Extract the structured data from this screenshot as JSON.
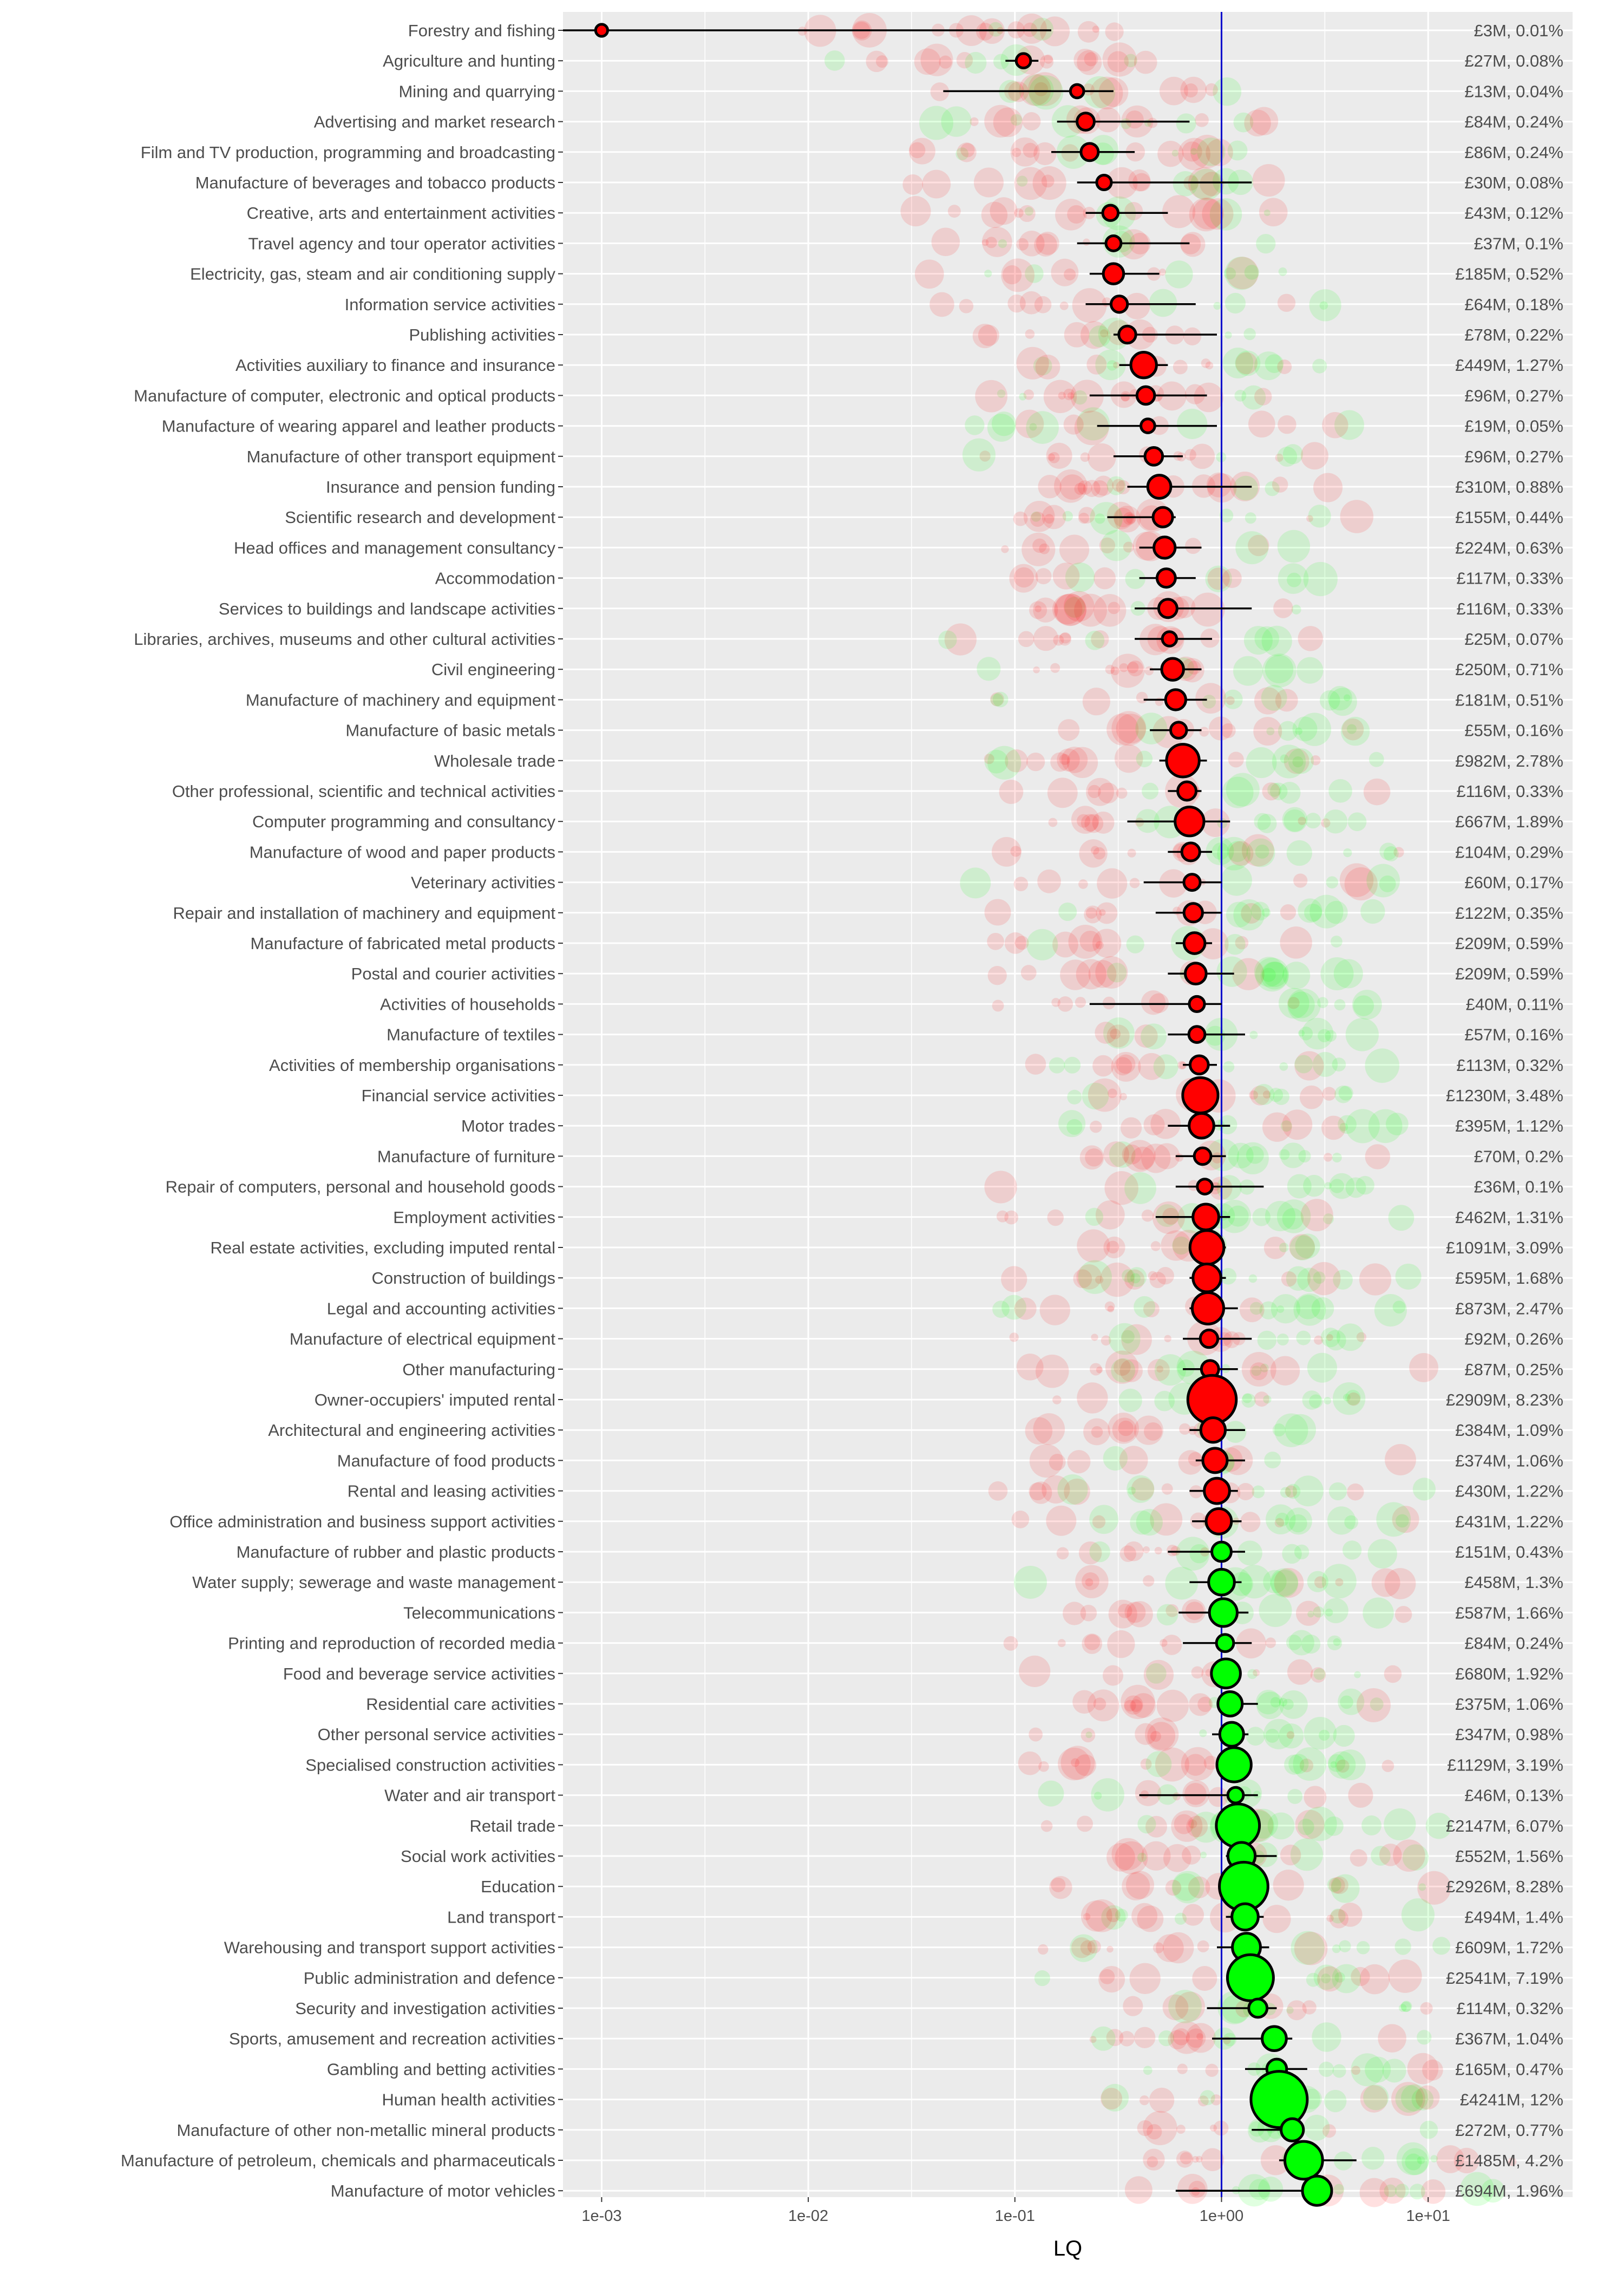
{
  "chart_data": {
    "type": "scatter",
    "xlabel": "LQ",
    "x_scale": "log",
    "xlim": [
      0.00065,
      50
    ],
    "x_ticks": [
      "1e-03",
      "1e-02",
      "1e-01",
      "1e+00",
      "1e+01"
    ],
    "x_tick_values": [
      0.001,
      0.01,
      0.1,
      1,
      10
    ],
    "reference_line": {
      "x": 1,
      "color": "#0000cc"
    },
    "grid": true,
    "panel_background": "#ebebeb",
    "colors": {
      "below_one": "#ff0000",
      "above_one": "#00ff00",
      "error_bar": "#000000"
    },
    "series": [
      {
        "category": "Forestry and fishing",
        "lq": 0.001,
        "low": 0.00065,
        "high": 0.15,
        "size": 3,
        "label": "£3M, 0.01%"
      },
      {
        "category": "Agriculture and hunting",
        "lq": 0.11,
        "low": 0.09,
        "high": 0.13,
        "size": 27,
        "label": "£27M, 0.08%"
      },
      {
        "category": "Mining and quarrying",
        "lq": 0.2,
        "low": 0.045,
        "high": 0.3,
        "size": 13,
        "label": "£13M, 0.04%"
      },
      {
        "category": "Advertising and market research",
        "lq": 0.22,
        "low": 0.16,
        "high": 0.7,
        "size": 84,
        "label": "£84M, 0.24%"
      },
      {
        "category": "Film and TV production, programming and broadcasting",
        "lq": 0.23,
        "low": 0.15,
        "high": 0.38,
        "size": 86,
        "label": "£86M, 0.24%"
      },
      {
        "category": "Manufacture of beverages and tobacco products",
        "lq": 0.27,
        "low": 0.2,
        "high": 1.4,
        "size": 30,
        "label": "£30M, 0.08%"
      },
      {
        "category": "Creative, arts and entertainment activities",
        "lq": 0.29,
        "low": 0.22,
        "high": 0.55,
        "size": 43,
        "label": "£43M, 0.12%"
      },
      {
        "category": "Travel agency and tour operator activities",
        "lq": 0.3,
        "low": 0.2,
        "high": 0.7,
        "size": 37,
        "label": "£37M, 0.1%"
      },
      {
        "category": "Electricity, gas, steam and air conditioning supply",
        "lq": 0.3,
        "low": 0.23,
        "high": 0.5,
        "size": 185,
        "label": "£185M, 0.52%"
      },
      {
        "category": "Information service activities",
        "lq": 0.32,
        "low": 0.22,
        "high": 0.75,
        "size": 64,
        "label": "£64M, 0.18%"
      },
      {
        "category": "Publishing activities",
        "lq": 0.35,
        "low": 0.3,
        "high": 0.95,
        "size": 78,
        "label": "£78M, 0.22%"
      },
      {
        "category": "Activities auxiliary to finance and insurance",
        "lq": 0.42,
        "low": 0.32,
        "high": 0.55,
        "size": 449,
        "label": "£449M, 1.27%"
      },
      {
        "category": "Manufacture of computer, electronic and optical products",
        "lq": 0.43,
        "low": 0.23,
        "high": 0.85,
        "size": 96,
        "label": "£96M, 0.27%"
      },
      {
        "category": "Manufacture of wearing apparel and leather products",
        "lq": 0.44,
        "low": 0.25,
        "high": 0.95,
        "size": 19,
        "label": "£19M, 0.05%"
      },
      {
        "category": "Manufacture of other transport equipment",
        "lq": 0.47,
        "low": 0.3,
        "high": 0.65,
        "size": 96,
        "label": "£96M, 0.27%"
      },
      {
        "category": "Insurance and pension funding",
        "lq": 0.5,
        "low": 0.35,
        "high": 1.4,
        "size": 310,
        "label": "£310M, 0.88%"
      },
      {
        "category": "Scientific research and development",
        "lq": 0.52,
        "low": 0.28,
        "high": 0.6,
        "size": 155,
        "label": "£155M, 0.44%"
      },
      {
        "category": "Head offices and management consultancy",
        "lq": 0.53,
        "low": 0.4,
        "high": 0.8,
        "size": 224,
        "label": "£224M, 0.63%"
      },
      {
        "category": "Accommodation",
        "lq": 0.54,
        "low": 0.4,
        "high": 0.75,
        "size": 117,
        "label": "£117M, 0.33%"
      },
      {
        "category": "Services to buildings and landscape activities",
        "lq": 0.55,
        "low": 0.38,
        "high": 1.4,
        "size": 116,
        "label": "£116M, 0.33%"
      },
      {
        "category": "Libraries, archives, museums and other cultural activities",
        "lq": 0.56,
        "low": 0.38,
        "high": 0.9,
        "size": 25,
        "label": "£25M, 0.07%"
      },
      {
        "category": "Civil engineering",
        "lq": 0.58,
        "low": 0.45,
        "high": 0.8,
        "size": 250,
        "label": "£250M, 0.71%"
      },
      {
        "category": "Manufacture of machinery and equipment",
        "lq": 0.6,
        "low": 0.42,
        "high": 0.85,
        "size": 181,
        "label": "£181M, 0.51%"
      },
      {
        "category": "Manufacture of basic metals",
        "lq": 0.62,
        "low": 0.45,
        "high": 0.8,
        "size": 55,
        "label": "£55M, 0.16%"
      },
      {
        "category": "Wholesale trade",
        "lq": 0.65,
        "low": 0.5,
        "high": 0.85,
        "size": 982,
        "label": "£982M, 2.78%"
      },
      {
        "category": "Other professional, scientific and technical activities",
        "lq": 0.68,
        "low": 0.55,
        "high": 0.8,
        "size": 116,
        "label": "£116M, 0.33%"
      },
      {
        "category": "Computer programming and consultancy",
        "lq": 0.7,
        "low": 0.35,
        "high": 1.1,
        "size": 667,
        "label": "£667M, 1.89%"
      },
      {
        "category": "Manufacture of wood and paper products",
        "lq": 0.71,
        "low": 0.55,
        "high": 0.9,
        "size": 104,
        "label": "£104M, 0.29%"
      },
      {
        "category": "Veterinary activities",
        "lq": 0.72,
        "low": 0.42,
        "high": 1.0,
        "size": 60,
        "label": "£60M, 0.17%"
      },
      {
        "category": "Repair and installation of machinery and equipment",
        "lq": 0.73,
        "low": 0.48,
        "high": 1.0,
        "size": 122,
        "label": "£122M, 0.35%"
      },
      {
        "category": "Manufacture of fabricated metal products",
        "lq": 0.74,
        "low": 0.6,
        "high": 0.9,
        "size": 209,
        "label": "£209M, 0.59%"
      },
      {
        "category": "Postal and courier activities",
        "lq": 0.75,
        "low": 0.55,
        "high": 1.15,
        "size": 209,
        "label": "£209M, 0.59%"
      },
      {
        "category": "Activities of households",
        "lq": 0.76,
        "low": 0.23,
        "high": 1.0,
        "size": 40,
        "label": "£40M, 0.11%"
      },
      {
        "category": "Manufacture of textiles",
        "lq": 0.76,
        "low": 0.55,
        "high": 1.3,
        "size": 57,
        "label": "£57M, 0.16%"
      },
      {
        "category": "Activities of membership organisations",
        "lq": 0.78,
        "low": 0.65,
        "high": 0.95,
        "size": 113,
        "label": "£113M, 0.32%"
      },
      {
        "category": "Financial service activities",
        "lq": 0.79,
        "low": 0.7,
        "high": 0.9,
        "size": 1230,
        "label": "£1230M, 3.48%"
      },
      {
        "category": "Motor trades",
        "lq": 0.8,
        "low": 0.55,
        "high": 1.1,
        "size": 395,
        "label": "£395M, 1.12%"
      },
      {
        "category": "Manufacture of furniture",
        "lq": 0.81,
        "low": 0.6,
        "high": 1.05,
        "size": 70,
        "label": "£70M, 0.2%"
      },
      {
        "category": "Repair of computers, personal and household goods",
        "lq": 0.83,
        "low": 0.6,
        "high": 1.6,
        "size": 36,
        "label": "£36M, 0.1%"
      },
      {
        "category": "Employment activities",
        "lq": 0.84,
        "low": 0.48,
        "high": 1.1,
        "size": 462,
        "label": "£462M, 1.31%"
      },
      {
        "category": "Real estate activities, excluding imputed rental",
        "lq": 0.85,
        "low": 0.75,
        "high": 1.05,
        "size": 1091,
        "label": "£1091M, 3.09%"
      },
      {
        "category": "Construction of buildings",
        "lq": 0.85,
        "low": 0.7,
        "high": 1.05,
        "size": 595,
        "label": "£595M, 1.68%"
      },
      {
        "category": "Legal and accounting activities",
        "lq": 0.86,
        "low": 0.7,
        "high": 1.2,
        "size": 873,
        "label": "£873M, 2.47%"
      },
      {
        "category": "Manufacture of electrical equipment",
        "lq": 0.87,
        "low": 0.65,
        "high": 1.4,
        "size": 92,
        "label": "£92M, 0.26%"
      },
      {
        "category": "Other manufacturing",
        "lq": 0.88,
        "low": 0.65,
        "high": 1.2,
        "size": 87,
        "label": "£87M, 0.25%"
      },
      {
        "category": "Owner-occupiers' imputed rental",
        "lq": 0.9,
        "low": 0.78,
        "high": 1.05,
        "size": 2909,
        "label": "£2909M, 8.23%"
      },
      {
        "category": "Architectural and engineering activities",
        "lq": 0.91,
        "low": 0.7,
        "high": 1.3,
        "size": 384,
        "label": "£384M, 1.09%"
      },
      {
        "category": "Manufacture of food products",
        "lq": 0.93,
        "low": 0.75,
        "high": 1.3,
        "size": 374,
        "label": "£374M, 1.06%"
      },
      {
        "category": "Rental and leasing activities",
        "lq": 0.95,
        "low": 0.7,
        "high": 1.2,
        "size": 430,
        "label": "£430M, 1.22%"
      },
      {
        "category": "Office administration and business support activities",
        "lq": 0.97,
        "low": 0.72,
        "high": 1.25,
        "size": 431,
        "label": "£431M, 1.22%"
      },
      {
        "category": "Manufacture of rubber and plastic products",
        "lq": 1.0,
        "low": 0.55,
        "high": 1.3,
        "size": 151,
        "label": "£151M, 0.43%"
      },
      {
        "category": "Water supply; sewerage and waste management",
        "lq": 1.0,
        "low": 0.7,
        "high": 1.25,
        "size": 458,
        "label": "£458M, 1.3%"
      },
      {
        "category": "Telecommunications",
        "lq": 1.02,
        "low": 0.62,
        "high": 1.35,
        "size": 587,
        "label": "£587M, 1.66%"
      },
      {
        "category": "Printing and reproduction of recorded media",
        "lq": 1.04,
        "low": 0.65,
        "high": 1.4,
        "size": 84,
        "label": "£84M, 0.24%"
      },
      {
        "category": "Food and beverage service activities",
        "lq": 1.05,
        "low": 0.9,
        "high": 1.2,
        "size": 680,
        "label": "£680M, 1.92%"
      },
      {
        "category": "Residential care activities",
        "lq": 1.1,
        "low": 0.95,
        "high": 1.5,
        "size": 375,
        "label": "£375M, 1.06%"
      },
      {
        "category": "Other personal service activities",
        "lq": 1.12,
        "low": 0.9,
        "high": 1.35,
        "size": 347,
        "label": "£347M, 0.98%"
      },
      {
        "category": "Specialised construction activities",
        "lq": 1.15,
        "low": 0.95,
        "high": 1.35,
        "size": 1129,
        "label": "£1129M, 3.19%"
      },
      {
        "category": "Water and air transport",
        "lq": 1.17,
        "low": 0.4,
        "high": 1.5,
        "size": 46,
        "label": "£46M, 0.13%"
      },
      {
        "category": "Retail trade",
        "lq": 1.2,
        "low": 1.0,
        "high": 1.45,
        "size": 2147,
        "label": "£2147M, 6.07%"
      },
      {
        "category": "Social work activities",
        "lq": 1.25,
        "low": 1.05,
        "high": 1.85,
        "size": 552,
        "label": "£552M, 1.56%"
      },
      {
        "category": "Education",
        "lq": 1.28,
        "low": 1.15,
        "high": 1.4,
        "size": 2926,
        "label": "£2926M, 8.28%"
      },
      {
        "category": "Land transport",
        "lq": 1.3,
        "low": 1.05,
        "high": 1.6,
        "size": 494,
        "label": "£494M, 1.4%"
      },
      {
        "category": "Warehousing and transport support activities",
        "lq": 1.32,
        "low": 0.95,
        "high": 1.7,
        "size": 609,
        "label": "£609M, 1.72%"
      },
      {
        "category": "Public administration and defence",
        "lq": 1.38,
        "low": 1.25,
        "high": 1.55,
        "size": 2541,
        "label": "£2541M, 7.19%"
      },
      {
        "category": "Security and investigation activities",
        "lq": 1.5,
        "low": 0.85,
        "high": 1.85,
        "size": 114,
        "label": "£114M, 0.32%"
      },
      {
        "category": "Sports, amusement and recreation activities",
        "lq": 1.8,
        "low": 0.9,
        "high": 2.2,
        "size": 367,
        "label": "£367M, 1.04%"
      },
      {
        "category": "Gambling and betting activities",
        "lq": 1.85,
        "low": 1.3,
        "high": 2.6,
        "size": 165,
        "label": "£165M, 0.47%"
      },
      {
        "category": "Human health activities",
        "lq": 1.9,
        "low": 1.5,
        "high": 2.1,
        "size": 4241,
        "label": "£4241M, 12%"
      },
      {
        "category": "Manufacture of other non-metallic mineral products",
        "lq": 2.2,
        "low": 1.4,
        "high": 2.4,
        "size": 272,
        "label": "£272M, 0.77%"
      },
      {
        "category": "Manufacture of petroleum, chemicals and pharmaceuticals",
        "lq": 2.5,
        "low": 1.9,
        "high": 4.5,
        "size": 1485,
        "label": "£1485M, 4.2%"
      },
      {
        "category": "Manufacture of motor vehicles",
        "lq": 2.9,
        "low": 0.6,
        "high": 3.1,
        "size": 694,
        "label": "£694M, 1.96%"
      }
    ]
  }
}
